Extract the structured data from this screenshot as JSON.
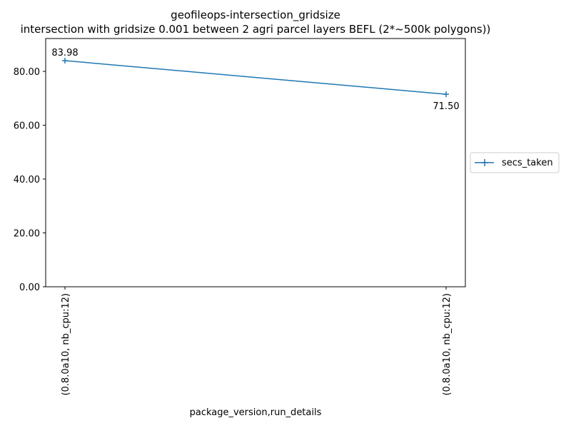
{
  "chart_data": {
    "type": "line",
    "title": "geofileops-intersection_gridsize",
    "subtitle": "intersection with gridsize 0.001 between 2 agri parcel layers BEFL (2*~500k polygons))",
    "xlabel": "package_version,run_details",
    "ylabel": "",
    "categories": [
      "(0.8.0a10, nb_cpu:12)",
      "(0.8.0a10, nb_cpu:12)"
    ],
    "series": [
      {
        "name": "secs_taken",
        "values": [
          83.98,
          71.5
        ],
        "value_labels": [
          "83.98",
          "71.50"
        ],
        "color": "#1f77b4",
        "marker": "+"
      }
    ],
    "ylim": [
      0,
      92.2
    ],
    "yticks": [
      0,
      20,
      40,
      60,
      80
    ],
    "ytick_labels": [
      "0.00",
      "20.00",
      "40.00",
      "60.00",
      "80.00"
    ],
    "grid": false,
    "legend_position": "center-right-outside"
  }
}
